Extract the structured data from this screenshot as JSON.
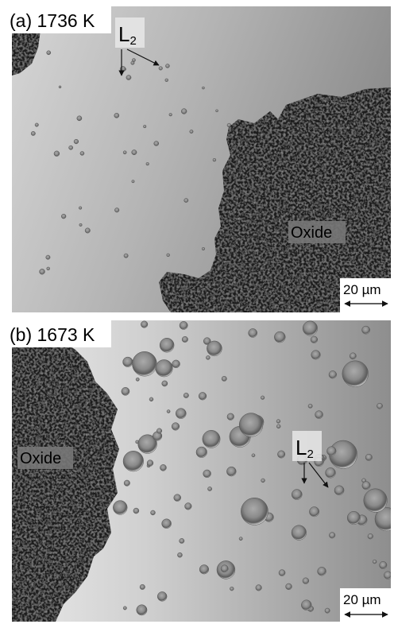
{
  "panels": [
    {
      "label": "(a) 1736 K",
      "phase_label": {
        "main": "L",
        "subscript": "2"
      },
      "region_label": "Oxide",
      "scale_bar": "20 µm"
    },
    {
      "label": "(b) 1673 K",
      "phase_label": {
        "main": "L",
        "subscript": "2"
      },
      "region_label": "Oxide",
      "scale_bar": "20 µm"
    }
  ]
}
